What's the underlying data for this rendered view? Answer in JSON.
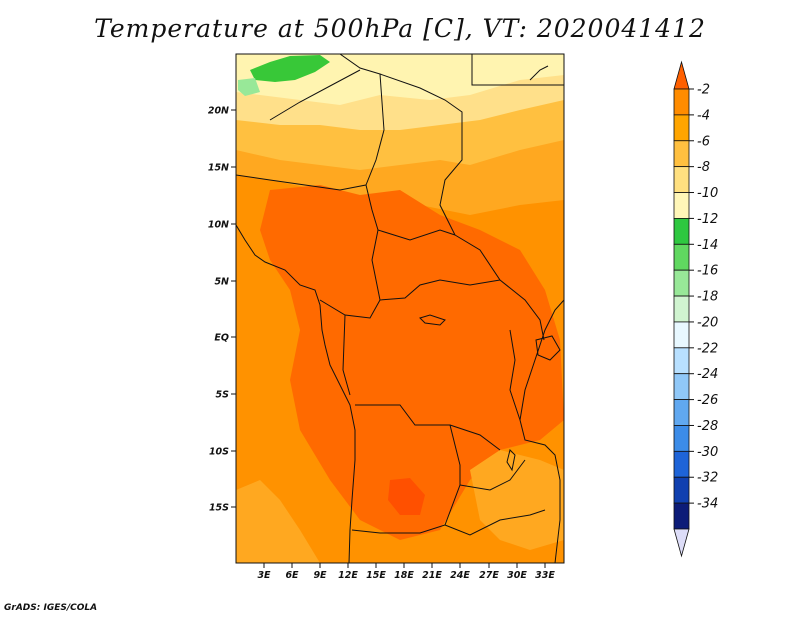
{
  "title": "Temperature at 500hPa [C], VT: 2020041412",
  "footer": "GrADS: IGES/COLA",
  "map": {
    "lat_labels": [
      "20N",
      "15N",
      "10N",
      "5N",
      "EQ",
      "5S",
      "10S",
      "15S"
    ],
    "lon_labels": [
      "3E",
      "6E",
      "9E",
      "12E",
      "15E",
      "18E",
      "21E",
      "24E",
      "27E",
      "30E",
      "33E"
    ]
  },
  "colorbar": {
    "labels": [
      "-2",
      "-4",
      "-6",
      "-8",
      "-10",
      "-12",
      "-14",
      "-16",
      "-18",
      "-20",
      "-22",
      "-24",
      "-26",
      "-28",
      "-30",
      "-32",
      "-34"
    ],
    "colors": [
      "#ff6000",
      "#ff8c00",
      "#ffa500",
      "#ffc040",
      "#ffe080",
      "#fff6b8",
      "#2ec840",
      "#60d860",
      "#98e898",
      "#d0f4d0",
      "#e8f8ff",
      "#b8e0ff",
      "#90c8f8",
      "#60a8f0",
      "#3c8ce8",
      "#1e64d8",
      "#1040b0",
      "#0c1c78",
      "#ddddf8"
    ]
  },
  "palette": {
    "land_main": "#ff9200",
    "land_hot": "#ff6a00",
    "land_warm": "#ffa820",
    "land_cool": "#ffc040",
    "land_pale": "#ffe08a",
    "land_cream": "#fff4b0",
    "green": "#38c838",
    "lightgreen": "#98e898"
  }
}
